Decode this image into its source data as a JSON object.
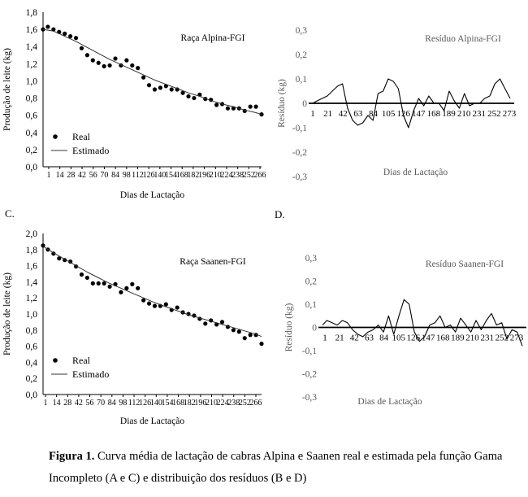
{
  "panel_letters": {
    "c": "C.",
    "d": "D."
  },
  "caption": {
    "bold": "Figura 1.",
    "text": " Curva média de lactação de cabras Alpina e Saanen real e estimada pela função Gama Incompleto (A e C) e distribuição dos resíduos (B e D)"
  },
  "chart_data": [
    {
      "id": "A",
      "type": "scatter",
      "title": "Raça Alpina-FGI",
      "xlabel": "Dias de Lactação",
      "ylabel": "Produção de leite (kg)",
      "ylim": [
        0,
        1.8
      ],
      "yticks": [
        "0,0",
        "0,2",
        "0,4",
        "0,6",
        "0,8",
        "1,0",
        "1,2",
        "1,4",
        "1,6",
        "1,8"
      ],
      "xticks": [
        "1",
        "14",
        "28",
        "42",
        "56",
        "70",
        "84",
        "98",
        "112",
        "126",
        "140",
        "154",
        "168",
        "182",
        "196",
        "210",
        "224",
        "238",
        "252",
        "266"
      ],
      "legend": {
        "position": "bottom-left",
        "entries": [
          "Real",
          "Estimado"
        ]
      },
      "series": [
        {
          "name": "Real",
          "style": "points",
          "x": [
            1,
            7,
            14,
            21,
            28,
            35,
            42,
            49,
            56,
            63,
            70,
            77,
            84,
            91,
            98,
            105,
            112,
            119,
            126,
            133,
            140,
            147,
            154,
            161,
            168,
            175,
            182,
            189,
            196,
            203,
            210,
            217,
            224,
            231,
            238,
            245,
            252,
            259,
            266,
            273
          ],
          "values": [
            1.6,
            1.63,
            1.6,
            1.57,
            1.55,
            1.52,
            1.5,
            1.38,
            1.3,
            1.24,
            1.21,
            1.17,
            1.18,
            1.26,
            1.18,
            1.24,
            1.18,
            1.15,
            1.04,
            0.95,
            0.9,
            0.92,
            0.94,
            0.9,
            0.9,
            0.86,
            0.82,
            0.8,
            0.84,
            0.79,
            0.78,
            0.72,
            0.73,
            0.68,
            0.68,
            0.68,
            0.65,
            0.7,
            0.7,
            0.61
          ]
        },
        {
          "name": "Estimado",
          "style": "line",
          "x": [
            1,
            14,
            28,
            42,
            56,
            70,
            84,
            98,
            112,
            126,
            140,
            154,
            168,
            182,
            196,
            210,
            224,
            238,
            252,
            266,
            273
          ],
          "values": [
            1.6,
            1.58,
            1.52,
            1.46,
            1.39,
            1.32,
            1.25,
            1.19,
            1.13,
            1.07,
            1.01,
            0.96,
            0.91,
            0.86,
            0.82,
            0.77,
            0.73,
            0.7,
            0.66,
            0.63,
            0.61
          ]
        }
      ]
    },
    {
      "id": "B",
      "type": "line",
      "title": "Resíduo Alpina-FGI",
      "xlabel": "Dias de Lactação",
      "ylabel": "Resíduo (kg)",
      "ylim": [
        -0.3,
        0.3
      ],
      "yticks": [
        "-0,3",
        "-0,2",
        "-0,1",
        "0",
        "0,1",
        "0,2",
        "0,3"
      ],
      "xticks": [
        "1",
        "21",
        "42",
        "63",
        "84",
        "105",
        "126",
        "147",
        "168",
        "189",
        "210",
        "231",
        "252",
        "273"
      ],
      "series": [
        {
          "name": "Resíduo",
          "x": [
            1,
            7,
            14,
            21,
            28,
            35,
            42,
            49,
            56,
            63,
            70,
            77,
            84,
            91,
            98,
            105,
            112,
            119,
            126,
            133,
            140,
            147,
            154,
            161,
            168,
            175,
            182,
            189,
            196,
            203,
            210,
            217,
            224,
            231,
            238,
            245,
            252,
            259,
            266,
            273
          ],
          "values": [
            0,
            0.01,
            0.02,
            0.03,
            0.05,
            0.07,
            0.08,
            -0.02,
            -0.07,
            -0.09,
            -0.08,
            -0.05,
            -0.07,
            0.04,
            0.05,
            0.1,
            0.09,
            0.06,
            -0.05,
            -0.1,
            -0.03,
            0.02,
            -0.01,
            0.03,
            0,
            0,
            -0.03,
            0.05,
            0.01,
            -0.02,
            0.04,
            -0.01,
            0,
            0,
            0.02,
            0.03,
            0.08,
            0.1,
            0.06,
            0.02
          ]
        }
      ]
    },
    {
      "id": "C",
      "type": "scatter",
      "title": "Raça Saanen-FGI",
      "xlabel": "Dias de Lactação",
      "ylabel": "Produção de leite (kg)",
      "ylim": [
        0,
        2.0
      ],
      "yticks": [
        "0,0",
        "0,2",
        "0,4",
        "0,6",
        "0,8",
        "1,0",
        "1,2",
        "1,4",
        "1,6",
        "1,8",
        "2,0"
      ],
      "xticks": [
        "1",
        "14",
        "28",
        "42",
        "56",
        "70",
        "84",
        "98",
        "112",
        "126",
        "140",
        "154",
        "168",
        "182",
        "196",
        "210",
        "224",
        "238",
        "252",
        "266"
      ],
      "legend": {
        "position": "bottom-left",
        "entries": [
          "Real",
          "Estimado"
        ]
      },
      "series": [
        {
          "name": "Real",
          "style": "points",
          "x": [
            1,
            7,
            14,
            21,
            28,
            35,
            42,
            49,
            56,
            63,
            70,
            77,
            84,
            91,
            98,
            105,
            112,
            119,
            126,
            133,
            140,
            147,
            154,
            161,
            168,
            175,
            182,
            189,
            196,
            203,
            210,
            217,
            224,
            231,
            238,
            245,
            252,
            259,
            266,
            273
          ],
          "values": [
            1.85,
            1.8,
            1.75,
            1.69,
            1.67,
            1.65,
            1.59,
            1.49,
            1.45,
            1.38,
            1.38,
            1.38,
            1.34,
            1.37,
            1.27,
            1.32,
            1.37,
            1.32,
            1.17,
            1.13,
            1.1,
            1.1,
            1.12,
            1.05,
            1.08,
            1.02,
            1.0,
            0.98,
            0.94,
            0.88,
            0.92,
            0.87,
            0.9,
            0.84,
            0.8,
            0.78,
            0.7,
            0.74,
            0.74,
            0.63
          ]
        },
        {
          "name": "Estimado",
          "style": "line",
          "x": [
            1,
            14,
            28,
            42,
            56,
            70,
            84,
            98,
            112,
            126,
            140,
            154,
            168,
            182,
            196,
            210,
            224,
            238,
            252,
            266,
            273
          ],
          "values": [
            1.84,
            1.76,
            1.68,
            1.6,
            1.52,
            1.45,
            1.38,
            1.32,
            1.26,
            1.2,
            1.14,
            1.09,
            1.04,
            0.99,
            0.95,
            0.91,
            0.87,
            0.83,
            0.79,
            0.75,
            0.72
          ]
        }
      ]
    },
    {
      "id": "D",
      "type": "line",
      "title": "Resíduo Saanen-FGI",
      "xlabel": "Dias de Lactação",
      "ylabel": "Resíduo (kg)",
      "ylim": [
        -0.3,
        0.3
      ],
      "yticks": [
        "-0,3",
        "-0,2",
        "-0,1",
        "0",
        "0,1",
        "0,2",
        "0,3"
      ],
      "xticks": [
        "1",
        "21",
        "42",
        "63",
        "84",
        "105",
        "126",
        "147",
        "168",
        "189",
        "210",
        "231",
        "252",
        "273"
      ],
      "series": [
        {
          "name": "Resíduo",
          "x": [
            1,
            7,
            14,
            21,
            28,
            35,
            42,
            49,
            56,
            63,
            70,
            77,
            84,
            91,
            98,
            105,
            112,
            119,
            126,
            133,
            140,
            147,
            154,
            161,
            168,
            175,
            182,
            189,
            196,
            203,
            210,
            217,
            224,
            231,
            238,
            245,
            252,
            259,
            266,
            273
          ],
          "values": [
            0.01,
            0.03,
            0.02,
            0.01,
            0.03,
            0.02,
            -0.01,
            -0.03,
            -0.04,
            -0.02,
            -0.01,
            0.01,
            -0.02,
            0.05,
            -0.03,
            0.05,
            0.12,
            0.1,
            -0.02,
            -0.06,
            -0.04,
            0.01,
            0.02,
            0.05,
            0,
            0.01,
            -0.02,
            0.04,
            0.01,
            -0.02,
            0.03,
            -0.01,
            0.03,
            0.06,
            0.01,
            0.02,
            -0.05,
            -0.01,
            -0.02,
            -0.08
          ]
        }
      ]
    }
  ]
}
